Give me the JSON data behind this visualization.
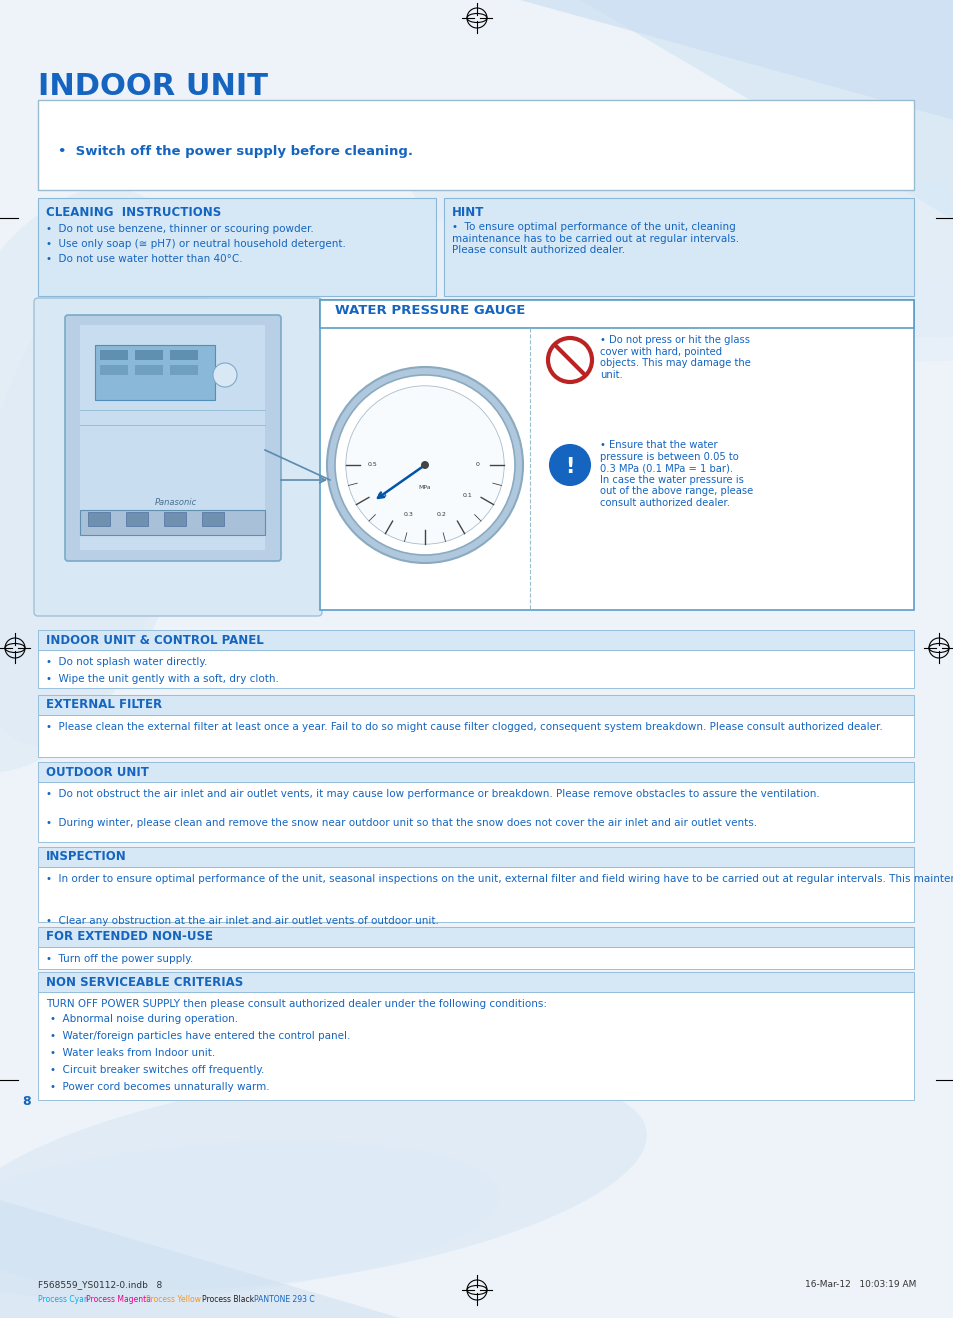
{
  "title": "INDOOR UNIT",
  "title_color": "#1565c0",
  "blue_dark": "#1565c0",
  "blue_mid": "#4a90d9",
  "blue_light": "#cde0f0",
  "blue_box_bg": "#d6e8f5",
  "blue_box_border": "#8ab8d8",
  "page_bg": "#eef4fa",
  "warning_box_text": "•  Switch off the power supply before cleaning.",
  "cleaning_title": "CLEANING  INSTRUCTIONS",
  "cleaning_bullets": [
    "Do not use benzene, thinner or scouring powder.",
    "Use only soap (≅ pH7) or neutral household detergent.",
    "Do not use water hotter than 40°C."
  ],
  "hint_title": "HINT",
  "hint_text": "To ensure optimal performance of the unit, cleaning\nmaintenance has to be carried out at regular intervals.\nPlease consult authorized dealer.",
  "water_gauge_title": "WATER PRESSURE GAUGE",
  "no_symbol_text": "Do not press or hit the glass\ncover with hard, pointed\nobjects. This may damage the\nunit.",
  "excl_text": "Ensure that the water\npressure is between 0.05 to\n0.3 MPa (0.1 MPa = 1 bar).\nIn case the water pressure is\nout of the above range, please\nconsult authorized dealer.",
  "indoor_unit_panel_title": "INDOOR UNIT & CONTROL PANEL",
  "indoor_unit_panel_bullets": [
    "Do not splash water directly.",
    "Wipe the unit gently with a soft, dry cloth."
  ],
  "external_filter_title": "EXTERNAL FILTER",
  "external_filter_bullets": [
    "Please clean the external filter at least once a year. Fail to do so might cause filter clogged, consequent system breakdown. Please consult authorized dealer."
  ],
  "outdoor_unit_title": "OUTDOOR UNIT",
  "outdoor_unit_bullets": [
    "Do not obstruct the air inlet and air outlet vents, it may cause low performance or breakdown. Please remove obstacles to assure the ventilation.",
    "During winter, please clean and remove the snow near outdoor unit so that the snow does not cover the air inlet and air outlet vents."
  ],
  "inspection_title": "INSPECTION",
  "inspection_bullets": [
    "In order to ensure optimal performance of the unit, seasonal inspections on the unit, external filter and field wiring have to be carried out at regular intervals. This maintenance should be carried out by authorized dealer.",
    "Clear any obstruction at the air inlet and air outlet vents of outdoor unit."
  ],
  "extended_title": "FOR EXTENDED NON-USE",
  "extended_bullets": [
    "Turn off the power supply."
  ],
  "non_serviceable_title": "NON SERVICEABLE CRITERIAS",
  "non_serviceable_bold": "TURN OFF POWER SUPPLY then please consult authorized dealer under the following conditions:",
  "non_serviceable_bullets": [
    "Abnormal noise during operation.",
    "Water/foreign particles have entered the control panel.",
    "Water leaks from Indoor unit.",
    "Circuit breaker switches off frequently.",
    "Power cord becomes unnaturally warm."
  ],
  "footer_left": "F568559_YS0112-0.indb   8",
  "footer_right": "16-Mar-12   10:03:19 AM",
  "footer_parts": [
    "Process Cyan",
    "Process Magenta",
    "Process Yellow",
    "Process Black",
    "PANTONE 293 C"
  ],
  "footer_colors": [
    "#00aeef",
    "#ec008c",
    "#f7941d",
    "#231f20",
    "#1565c0"
  ],
  "page_number": "8"
}
